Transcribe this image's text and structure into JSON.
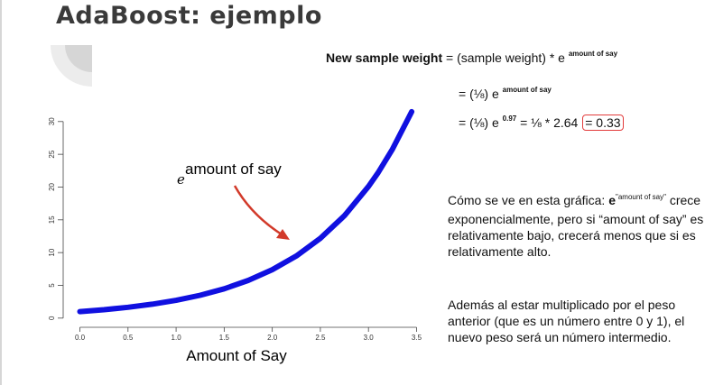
{
  "slide": {
    "title": "AdaBoost: ejemplo"
  },
  "formula": {
    "label": "New sample weight",
    "rhs": " = (sample weight) * e ",
    "exponent": "amount of say",
    "line2_prefix": "= (⅛)  e ",
    "line2_exponent": "amount of say",
    "line3_prefix": "= (⅛)  e ",
    "line3_exponent": "0.97",
    "line3_middle": " = ⅛ * 2.64 ",
    "line3_result": "= 0.33"
  },
  "explanation": {
    "p1_intro": "Cómo se ve en esta gráfica: ",
    "p1_e": "e",
    "p1_exp": "\"amount of say\"",
    "p1_rest": " crece exponencialmente, pero si “amount of say” es relativamente bajo, crecerá menos que si es relativamente alto.",
    "p2": "Además al estar multiplicado por el peso anterior (que es un número entre 0 y 1), el nuevo peso será un número intermedio."
  },
  "chart_data": {
    "type": "line",
    "function": "e^x",
    "x": [
      0.0,
      0.25,
      0.5,
      0.75,
      1.0,
      1.25,
      1.5,
      1.75,
      2.0,
      2.25,
      2.5,
      2.75,
      3.0,
      3.1,
      3.25,
      3.45
    ],
    "y": [
      1.0,
      1.28,
      1.65,
      2.12,
      2.72,
      3.49,
      4.48,
      5.75,
      7.39,
      9.49,
      12.18,
      15.64,
      20.09,
      22.2,
      25.79,
      31.5
    ],
    "xlabel": "Amount of Say",
    "ylabel": "",
    "x_ticks": [
      "0.0",
      "0.5",
      "1.0",
      "1.5",
      "2.0",
      "2.5",
      "3.0",
      "3.5"
    ],
    "y_ticks": [
      "0",
      "5",
      "10",
      "15",
      "20",
      "25",
      "30"
    ],
    "xlim": [
      -0.08,
      3.58
    ],
    "ylim": [
      -0.3,
      33
    ],
    "annotation": {
      "e": "e",
      "text": "amount of say"
    },
    "line_color": "#1010e0",
    "arrow_color": "#d23a2a",
    "grid": false
  },
  "colors": {
    "title": "#3a3a3a",
    "highlight_box": "#e23b3b"
  }
}
